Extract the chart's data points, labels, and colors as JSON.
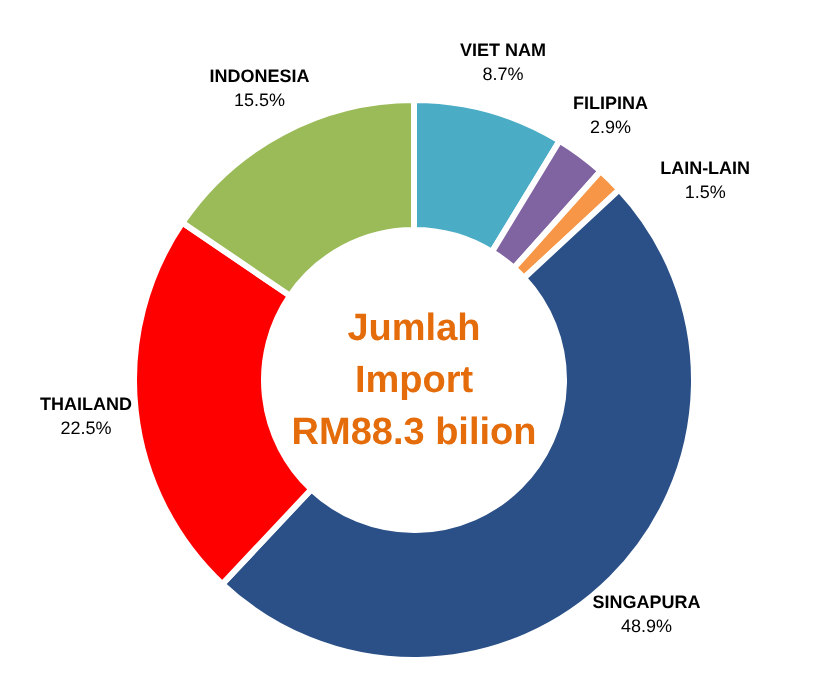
{
  "chart_data": {
    "type": "donut",
    "categories": [
      "VIET NAM",
      "FILIPINA",
      "LAIN-LAIN",
      "SINGAPURA",
      "THAILAND",
      "INDONESIA"
    ],
    "values": [
      8.7,
      2.9,
      1.5,
      48.9,
      22.5,
      15.5
    ],
    "colors": [
      "#4bacc6",
      "#8064a2",
      "#f79646",
      "#2b5087",
      "#ff0000",
      "#9bbb59"
    ],
    "value_labels": [
      "8.7%",
      "2.9%",
      "1.5%",
      "48.9%",
      "22.5%",
      "15.5%"
    ],
    "annotations": [
      "Jumlah",
      "Import",
      "RM88.3 bilion"
    ]
  }
}
